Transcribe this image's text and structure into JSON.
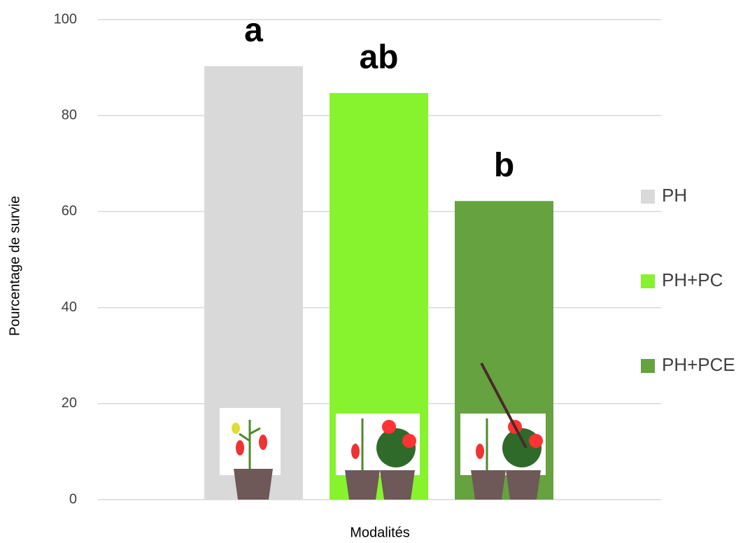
{
  "chart_data": {
    "type": "bar",
    "x_label": "Modalités",
    "y_label": "Pourcentage de survie",
    "categories": [
      null
    ],
    "series": [
      {
        "name": "PH",
        "color": "#d9d9d9",
        "values": [
          90.3
        ]
      },
      {
        "name": "PH+PC",
        "color": "#86f32e",
        "values": [
          84.7
        ]
      },
      {
        "name": "PH+PCE",
        "color": "#66a23f",
        "values": [
          62.2
        ]
      }
    ],
    "annotations": [
      "a",
      "ab",
      "b"
    ],
    "ylim": [
      0,
      100
    ],
    "yticks": [
      0,
      20,
      40,
      60,
      80,
      100
    ],
    "grid": true,
    "legend": "right"
  }
}
